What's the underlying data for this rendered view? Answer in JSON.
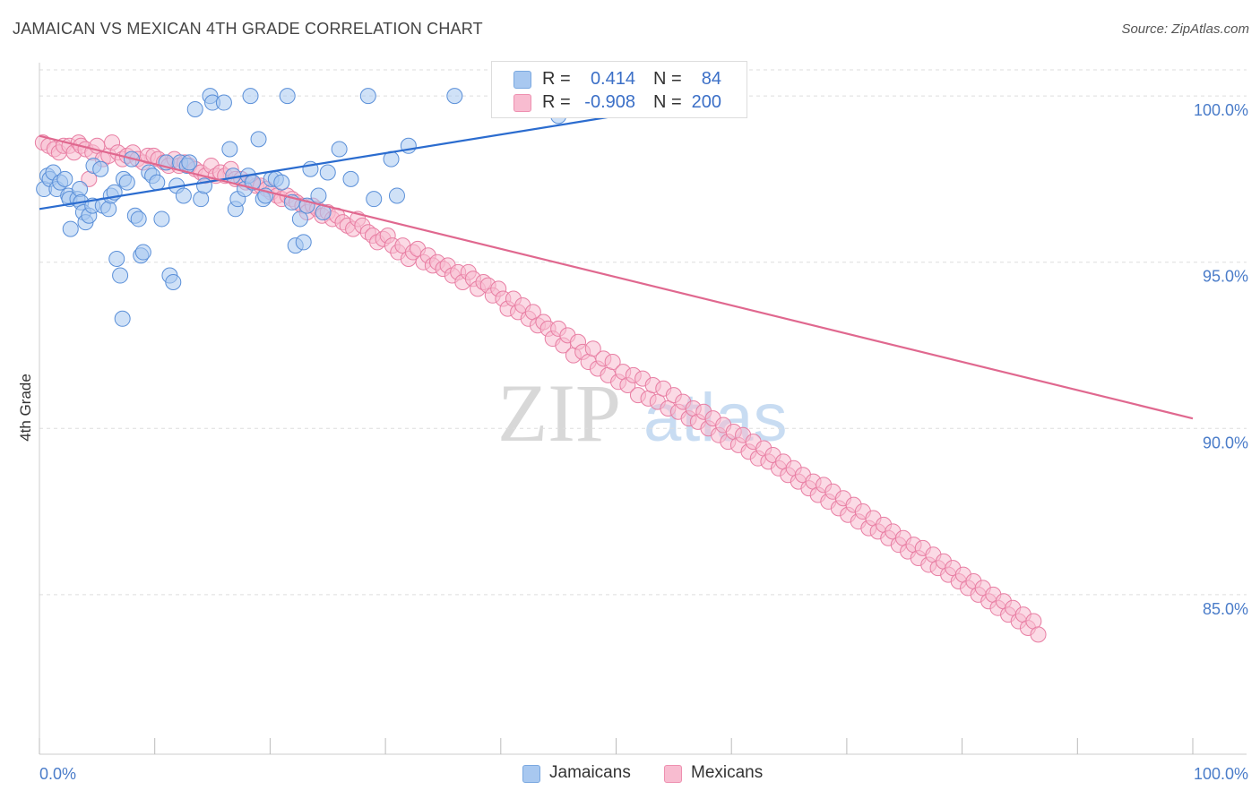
{
  "title": "JAMAICAN VS MEXICAN 4TH GRADE CORRELATION CHART",
  "source": "Source: ZipAtlas.com",
  "watermark": {
    "zip": "ZIP",
    "atlas": "atlas"
  },
  "legend": {
    "rows": [
      {
        "r_label": "R =",
        "r_value": "0.414",
        "n_label": "N =",
        "n_value": "84",
        "color": "#a8c8f0",
        "border": "#7aa8e0"
      },
      {
        "r_label": "R =",
        "r_value": "-0.908",
        "n_label": "N =",
        "n_value": "200",
        "color": "#f8bcd0",
        "border": "#ee90b0"
      }
    ]
  },
  "bottom_legend": [
    "Jamaicans",
    "Mexicans"
  ],
  "colors": {
    "blue_fill": "#a8c8f0",
    "blue_stroke": "#5a8fd8",
    "blue_line": "#2b6ccf",
    "pink_fill": "#f8bcd0",
    "pink_stroke": "#e87ea3",
    "pink_line": "#e0688f",
    "tick_label": "#4a7cc9",
    "grid": "#dddddd"
  },
  "chart_data": {
    "type": "scatter",
    "title": "JAMAICAN VS MEXICAN 4TH GRADE CORRELATION CHART",
    "xlabel": "",
    "ylabel": "4th Grade",
    "xlim": [
      0,
      100
    ],
    "ylim": [
      80.2,
      101.0
    ],
    "x_tick_labels": [
      "0.0%",
      "100.0%"
    ],
    "y_ticks": [
      85.0,
      90.0,
      95.0,
      100.0
    ],
    "y_tick_labels": [
      "85.0%",
      "90.0%",
      "95.0%",
      "100.0%"
    ],
    "grid": true,
    "legend_position": "top-center",
    "series": [
      {
        "name": "Jamaicans",
        "r": 0.414,
        "n": 84,
        "trend": {
          "x": [
            0,
            50
          ],
          "y": [
            96.6,
            99.4
          ]
        },
        "points": [
          [
            0.4,
            97.2
          ],
          [
            0.7,
            97.6
          ],
          [
            0.9,
            97.5
          ],
          [
            1.2,
            97.7
          ],
          [
            1.5,
            97.2
          ],
          [
            1.8,
            97.4
          ],
          [
            2.2,
            97.5
          ],
          [
            2.5,
            97.0
          ],
          [
            2.6,
            96.9
          ],
          [
            2.7,
            96.0
          ],
          [
            3.3,
            96.9
          ],
          [
            3.5,
            97.2
          ],
          [
            3.6,
            96.8
          ],
          [
            3.8,
            96.5
          ],
          [
            4.0,
            96.2
          ],
          [
            4.3,
            96.4
          ],
          [
            4.6,
            96.7
          ],
          [
            4.7,
            97.9
          ],
          [
            5.3,
            97.8
          ],
          [
            5.5,
            96.7
          ],
          [
            6.0,
            96.6
          ],
          [
            6.2,
            97.0
          ],
          [
            6.5,
            97.1
          ],
          [
            6.7,
            95.1
          ],
          [
            7.0,
            94.6
          ],
          [
            7.2,
            93.3
          ],
          [
            7.3,
            97.5
          ],
          [
            7.6,
            97.4
          ],
          [
            8.0,
            98.1
          ],
          [
            8.3,
            96.4
          ],
          [
            8.6,
            96.3
          ],
          [
            8.8,
            95.2
          ],
          [
            9.0,
            95.3
          ],
          [
            9.5,
            97.7
          ],
          [
            9.8,
            97.6
          ],
          [
            10.2,
            97.4
          ],
          [
            10.6,
            96.3
          ],
          [
            11.0,
            98.0
          ],
          [
            11.3,
            94.6
          ],
          [
            11.6,
            94.4
          ],
          [
            11.9,
            97.3
          ],
          [
            12.2,
            98.0
          ],
          [
            12.5,
            97.0
          ],
          [
            12.8,
            97.9
          ],
          [
            13.0,
            98.0
          ],
          [
            13.5,
            99.6
          ],
          [
            14.0,
            96.9
          ],
          [
            14.3,
            97.3
          ],
          [
            14.8,
            100.0
          ],
          [
            15.0,
            99.8
          ],
          [
            16.0,
            99.8
          ],
          [
            16.5,
            98.4
          ],
          [
            16.8,
            97.6
          ],
          [
            17.0,
            96.6
          ],
          [
            17.2,
            96.9
          ],
          [
            17.8,
            97.2
          ],
          [
            18.1,
            97.6
          ],
          [
            18.3,
            100.0
          ],
          [
            18.5,
            97.4
          ],
          [
            19.0,
            98.7
          ],
          [
            19.4,
            96.9
          ],
          [
            19.6,
            97.0
          ],
          [
            20.1,
            97.5
          ],
          [
            20.5,
            97.5
          ],
          [
            21.0,
            97.4
          ],
          [
            21.5,
            100.0
          ],
          [
            21.9,
            96.8
          ],
          [
            22.2,
            95.5
          ],
          [
            22.6,
            96.3
          ],
          [
            22.9,
            95.6
          ],
          [
            23.2,
            96.7
          ],
          [
            23.5,
            97.8
          ],
          [
            24.2,
            97.0
          ],
          [
            24.6,
            96.5
          ],
          [
            25.0,
            97.7
          ],
          [
            26.0,
            98.4
          ],
          [
            27.0,
            97.5
          ],
          [
            28.5,
            100.0
          ],
          [
            29.0,
            96.9
          ],
          [
            30.5,
            98.1
          ],
          [
            31.0,
            97.0
          ],
          [
            32.0,
            98.5
          ],
          [
            36.0,
            100.0
          ],
          [
            45.0,
            99.4
          ]
        ]
      },
      {
        "name": "Mexicans",
        "r": -0.908,
        "n": 200,
        "trend": {
          "x": [
            0,
            100
          ],
          "y": [
            98.8,
            90.3
          ]
        },
        "points": [
          [
            0.3,
            98.6
          ],
          [
            0.8,
            98.5
          ],
          [
            1.3,
            98.4
          ],
          [
            1.7,
            98.3
          ],
          [
            2.1,
            98.5
          ],
          [
            2.6,
            98.5
          ],
          [
            3.0,
            98.3
          ],
          [
            3.4,
            98.6
          ],
          [
            3.6,
            98.5
          ],
          [
            4.0,
            98.4
          ],
          [
            4.3,
            97.5
          ],
          [
            4.6,
            98.3
          ],
          [
            5.0,
            98.5
          ],
          [
            5.5,
            98.1
          ],
          [
            6.0,
            98.2
          ],
          [
            6.3,
            98.6
          ],
          [
            6.8,
            98.3
          ],
          [
            7.2,
            98.1
          ],
          [
            7.6,
            98.2
          ],
          [
            8.1,
            98.3
          ],
          [
            8.5,
            98.1
          ],
          [
            9.0,
            98.0
          ],
          [
            9.4,
            98.2
          ],
          [
            9.9,
            98.2
          ],
          [
            10.3,
            98.1
          ],
          [
            10.8,
            98.0
          ],
          [
            11.2,
            97.9
          ],
          [
            11.7,
            98.1
          ],
          [
            12.1,
            97.9
          ],
          [
            12.6,
            98.0
          ],
          [
            13.0,
            97.9
          ],
          [
            13.5,
            97.8
          ],
          [
            14.0,
            97.7
          ],
          [
            14.4,
            97.6
          ],
          [
            14.9,
            97.9
          ],
          [
            15.3,
            97.6
          ],
          [
            15.7,
            97.7
          ],
          [
            16.1,
            97.6
          ],
          [
            16.6,
            97.8
          ],
          [
            17.0,
            97.5
          ],
          [
            17.5,
            97.5
          ],
          [
            17.9,
            97.4
          ],
          [
            18.4,
            97.4
          ],
          [
            18.8,
            97.3
          ],
          [
            19.2,
            97.3
          ],
          [
            19.7,
            97.2
          ],
          [
            20.1,
            97.1
          ],
          [
            20.6,
            97.0
          ],
          [
            21.0,
            96.9
          ],
          [
            21.5,
            97.0
          ],
          [
            21.9,
            96.9
          ],
          [
            22.3,
            96.8
          ],
          [
            22.8,
            96.7
          ],
          [
            23.2,
            96.5
          ],
          [
            23.7,
            96.7
          ],
          [
            24.1,
            96.6
          ],
          [
            24.5,
            96.4
          ],
          [
            25.0,
            96.5
          ],
          [
            25.4,
            96.3
          ],
          [
            25.8,
            96.4
          ],
          [
            26.3,
            96.2
          ],
          [
            26.7,
            96.1
          ],
          [
            27.2,
            96.0
          ],
          [
            27.6,
            96.3
          ],
          [
            28.0,
            96.1
          ],
          [
            28.5,
            95.9
          ],
          [
            28.9,
            95.8
          ],
          [
            29.3,
            95.6
          ],
          [
            29.8,
            95.7
          ],
          [
            30.2,
            95.8
          ],
          [
            30.6,
            95.5
          ],
          [
            31.1,
            95.3
          ],
          [
            31.5,
            95.5
          ],
          [
            32.0,
            95.1
          ],
          [
            32.4,
            95.3
          ],
          [
            32.8,
            95.4
          ],
          [
            33.3,
            95.0
          ],
          [
            33.7,
            95.2
          ],
          [
            34.1,
            94.9
          ],
          [
            34.5,
            95.0
          ],
          [
            35.0,
            94.8
          ],
          [
            35.4,
            94.9
          ],
          [
            35.8,
            94.6
          ],
          [
            36.3,
            94.7
          ],
          [
            36.7,
            94.4
          ],
          [
            37.2,
            94.7
          ],
          [
            37.6,
            94.5
          ],
          [
            38.0,
            94.2
          ],
          [
            38.5,
            94.4
          ],
          [
            38.9,
            94.3
          ],
          [
            39.3,
            94.0
          ],
          [
            39.8,
            94.2
          ],
          [
            40.2,
            93.9
          ],
          [
            40.6,
            93.6
          ],
          [
            41.1,
            93.9
          ],
          [
            41.5,
            93.5
          ],
          [
            41.9,
            93.7
          ],
          [
            42.4,
            93.3
          ],
          [
            42.8,
            93.5
          ],
          [
            43.2,
            93.1
          ],
          [
            43.7,
            93.2
          ],
          [
            44.1,
            93.0
          ],
          [
            44.5,
            92.7
          ],
          [
            45.0,
            93.0
          ],
          [
            45.4,
            92.5
          ],
          [
            45.8,
            92.8
          ],
          [
            46.3,
            92.2
          ],
          [
            46.7,
            92.6
          ],
          [
            47.1,
            92.3
          ],
          [
            47.6,
            92.0
          ],
          [
            48.0,
            92.4
          ],
          [
            48.4,
            91.8
          ],
          [
            48.9,
            92.1
          ],
          [
            49.3,
            91.6
          ],
          [
            49.7,
            92.0
          ],
          [
            50.2,
            91.4
          ],
          [
            50.6,
            91.7
          ],
          [
            51.0,
            91.3
          ],
          [
            51.5,
            91.6
          ],
          [
            51.9,
            91.0
          ],
          [
            52.3,
            91.5
          ],
          [
            52.8,
            90.9
          ],
          [
            53.2,
            91.3
          ],
          [
            53.6,
            90.8
          ],
          [
            54.1,
            91.2
          ],
          [
            54.5,
            90.6
          ],
          [
            55.0,
            91.0
          ],
          [
            55.4,
            90.5
          ],
          [
            55.8,
            90.8
          ],
          [
            56.3,
            90.3
          ],
          [
            56.7,
            90.6
          ],
          [
            57.1,
            90.2
          ],
          [
            57.6,
            90.5
          ],
          [
            58.0,
            90.0
          ],
          [
            58.4,
            90.3
          ],
          [
            58.9,
            89.8
          ],
          [
            59.3,
            90.1
          ],
          [
            59.7,
            89.6
          ],
          [
            60.2,
            89.9
          ],
          [
            60.6,
            89.5
          ],
          [
            61.0,
            89.8
          ],
          [
            61.5,
            89.3
          ],
          [
            61.9,
            89.6
          ],
          [
            62.3,
            89.1
          ],
          [
            62.8,
            89.4
          ],
          [
            63.2,
            89.0
          ],
          [
            63.6,
            89.2
          ],
          [
            64.1,
            88.8
          ],
          [
            64.5,
            89.0
          ],
          [
            64.9,
            88.6
          ],
          [
            65.4,
            88.8
          ],
          [
            65.8,
            88.4
          ],
          [
            66.2,
            88.6
          ],
          [
            66.7,
            88.2
          ],
          [
            67.1,
            88.4
          ],
          [
            67.5,
            88.0
          ],
          [
            68.0,
            88.3
          ],
          [
            68.4,
            87.8
          ],
          [
            68.8,
            88.1
          ],
          [
            69.3,
            87.6
          ],
          [
            69.7,
            87.9
          ],
          [
            70.1,
            87.4
          ],
          [
            70.6,
            87.7
          ],
          [
            71.0,
            87.2
          ],
          [
            71.4,
            87.5
          ],
          [
            71.9,
            87.0
          ],
          [
            72.3,
            87.3
          ],
          [
            72.7,
            86.9
          ],
          [
            73.2,
            87.1
          ],
          [
            73.6,
            86.7
          ],
          [
            74.0,
            86.9
          ],
          [
            74.5,
            86.5
          ],
          [
            74.9,
            86.7
          ],
          [
            75.3,
            86.3
          ],
          [
            75.8,
            86.5
          ],
          [
            76.2,
            86.1
          ],
          [
            76.6,
            86.4
          ],
          [
            77.1,
            85.9
          ],
          [
            77.5,
            86.2
          ],
          [
            77.9,
            85.8
          ],
          [
            78.4,
            86.0
          ],
          [
            78.8,
            85.6
          ],
          [
            79.2,
            85.8
          ],
          [
            79.7,
            85.4
          ],
          [
            80.1,
            85.6
          ],
          [
            80.5,
            85.2
          ],
          [
            81.0,
            85.4
          ],
          [
            81.4,
            85.0
          ],
          [
            81.8,
            85.2
          ],
          [
            82.3,
            84.8
          ],
          [
            82.7,
            85.0
          ],
          [
            83.1,
            84.6
          ],
          [
            83.6,
            84.8
          ],
          [
            84.0,
            84.4
          ],
          [
            84.4,
            84.6
          ],
          [
            84.9,
            84.2
          ],
          [
            85.3,
            84.4
          ],
          [
            85.7,
            84.0
          ],
          [
            86.2,
            84.2
          ],
          [
            86.6,
            83.8
          ]
        ]
      }
    ]
  }
}
